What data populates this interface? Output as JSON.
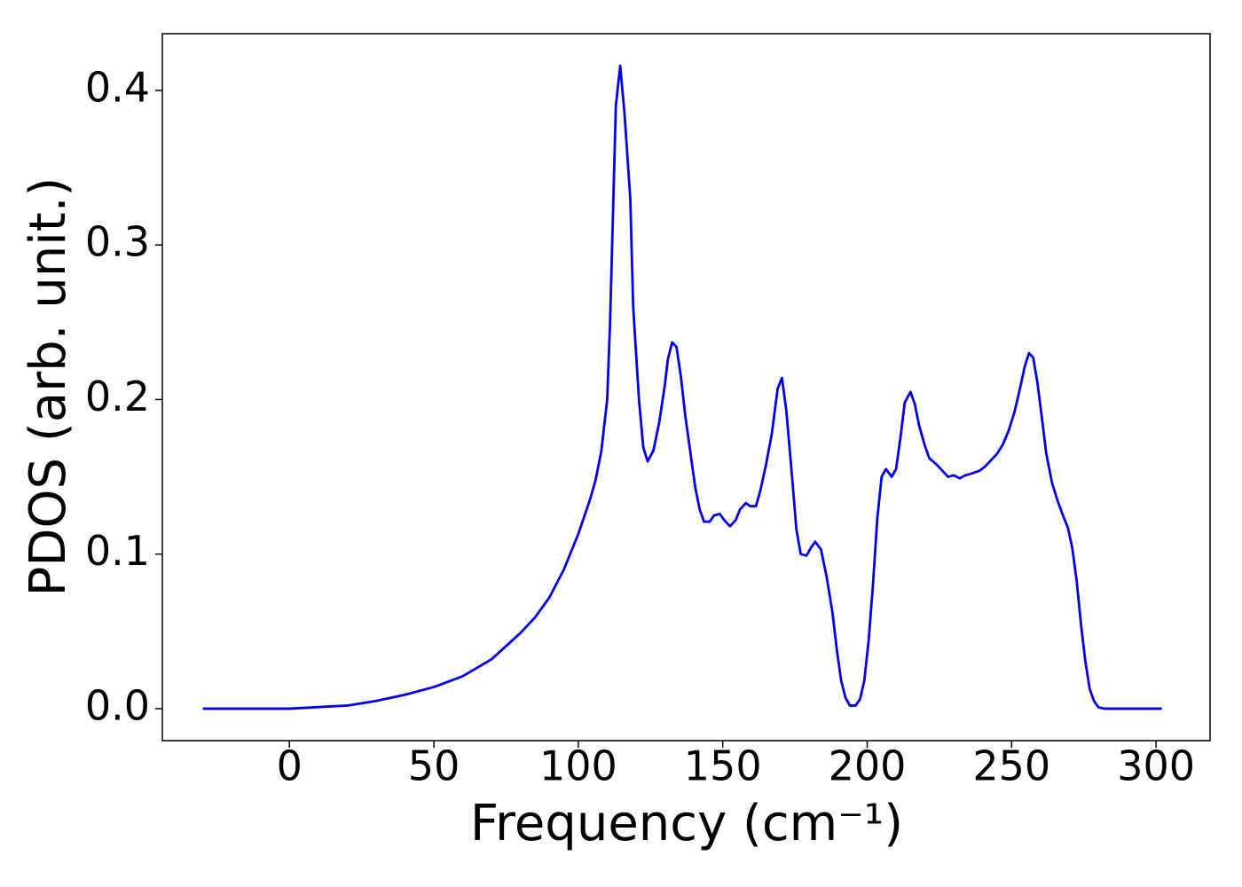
{
  "chart_data": {
    "type": "line",
    "x_label": "Frequency (cm⁻¹)",
    "y_label": "PDOS (arb. unit.)",
    "x": [
      -30,
      0,
      10,
      20,
      30,
      40,
      50,
      60,
      70,
      80,
      85,
      90,
      95,
      100,
      104,
      106,
      108,
      110,
      111,
      112,
      113,
      114.5,
      116,
      118,
      119,
      121,
      122.5,
      124,
      126,
      128,
      130,
      131,
      132.5,
      134,
      135.5,
      137,
      139,
      140.5,
      142,
      143.5,
      145.5,
      147,
      149,
      150.5,
      152.5,
      154.5,
      156,
      158,
      159.5,
      161.5,
      163,
      165,
      167,
      169,
      170.5,
      172,
      174,
      175.5,
      177,
      179,
      180.5,
      182,
      184,
      186,
      188,
      189.5,
      191,
      192.5,
      194,
      196,
      197.5,
      199,
      200.5,
      202,
      203.5,
      205,
      206.5,
      208.5,
      210,
      211.5,
      213,
      215,
      216.5,
      218,
      220,
      221.5,
      224,
      226,
      228,
      230,
      232,
      234,
      236,
      239,
      241,
      243,
      245,
      247,
      249,
      251,
      253,
      254.5,
      256,
      257.5,
      259,
      260.5,
      262,
      264,
      266,
      268,
      269.5,
      271,
      272.5,
      274,
      275.5,
      277,
      278.5,
      280,
      282,
      290,
      302
    ],
    "series": [
      {
        "name": "PDOS",
        "color": "#0000ee",
        "values": [
          0,
          0,
          0.001,
          0.002,
          0.005,
          0.009,
          0.014,
          0.021,
          0.032,
          0.049,
          0.059,
          0.072,
          0.09,
          0.113,
          0.135,
          0.148,
          0.167,
          0.2,
          0.25,
          0.32,
          0.39,
          0.416,
          0.385,
          0.33,
          0.26,
          0.2,
          0.169,
          0.16,
          0.167,
          0.185,
          0.21,
          0.226,
          0.237,
          0.234,
          0.215,
          0.19,
          0.163,
          0.143,
          0.129,
          0.121,
          0.121,
          0.125,
          0.126,
          0.122,
          0.118,
          0.122,
          0.129,
          0.133,
          0.131,
          0.131,
          0.141,
          0.158,
          0.178,
          0.207,
          0.214,
          0.193,
          0.15,
          0.116,
          0.1,
          0.099,
          0.104,
          0.108,
          0.103,
          0.085,
          0.062,
          0.038,
          0.018,
          0.007,
          0.002,
          0.002,
          0.006,
          0.018,
          0.044,
          0.08,
          0.123,
          0.15,
          0.155,
          0.15,
          0.155,
          0.175,
          0.198,
          0.205,
          0.197,
          0.183,
          0.17,
          0.162,
          0.158,
          0.154,
          0.15,
          0.151,
          0.149,
          0.151,
          0.152,
          0.154,
          0.157,
          0.161,
          0.165,
          0.171,
          0.18,
          0.192,
          0.208,
          0.221,
          0.23,
          0.227,
          0.21,
          0.188,
          0.165,
          0.146,
          0.134,
          0.124,
          0.117,
          0.104,
          0.083,
          0.055,
          0.031,
          0.013,
          0.005,
          0.001,
          0,
          0,
          0
        ]
      }
    ],
    "xlim": [
      -44,
      318.7
    ],
    "xticks": [
      0,
      50,
      100,
      150,
      200,
      250,
      300
    ],
    "ylim": [
      -0.0207,
      0.4367
    ],
    "yticks": [
      {
        "value": 0,
        "label": "0.0"
      },
      {
        "value": 0.1,
        "label": "0.1"
      },
      {
        "value": 0.2,
        "label": "0.2"
      },
      {
        "value": 0.3,
        "label": "0.3"
      },
      {
        "value": 0.4,
        "label": "0.4"
      }
    ],
    "grid": false
  }
}
